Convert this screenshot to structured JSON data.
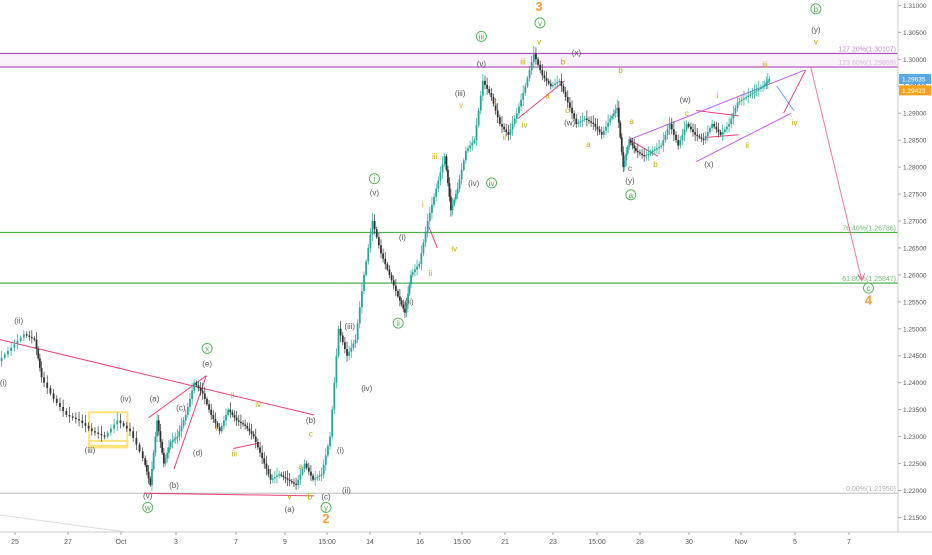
{
  "chart_data": {
    "type": "candlestick",
    "x_ticks": [
      "25",
      "27",
      "Oct",
      "3",
      "7",
      "9",
      "15:00",
      "14",
      "16",
      "15:00",
      "21",
      "23",
      "15:00",
      "28",
      "30",
      "Nov",
      "5",
      "7"
    ],
    "y_ticks": [
      "1.31000",
      "1.30500",
      "1.30000",
      "1.29500",
      "1.29000",
      "1.28500",
      "1.28000",
      "1.27500",
      "1.27000",
      "1.26500",
      "1.26000",
      "1.25500",
      "1.25000",
      "1.24500",
      "1.24000",
      "1.23500",
      "1.23000",
      "1.22500",
      "1.22000",
      "1.21500"
    ],
    "ylim": [
      1.2123,
      1.311
    ],
    "xlim": [
      0,
      100
    ],
    "current_price": {
      "value": 1.29635,
      "label": "1.29635",
      "color": "#58a8e8"
    },
    "secondary_price": {
      "value": 1.29423,
      "label": "1.29423",
      "color": "#f7a21b"
    },
    "levels": [
      {
        "label": "127.20%(1.30107)",
        "value": 1.30107,
        "color": "#9c27b0",
        "text_color": "#c78bd2"
      },
      {
        "label": "123.60%(1.29859)",
        "value": 1.29859,
        "color": "#9c27b0",
        "text_color": "#c78bd2"
      },
      {
        "label": "76.40%(1.26786)",
        "value": 1.26786,
        "color": "#4caf50",
        "text_color": "#6fbf73"
      },
      {
        "label": "61.80%(1.25847)",
        "value": 1.25847,
        "color": "#4caf50",
        "text_color": "#6fbf73"
      },
      {
        "label": "0.00%(1.21950)",
        "value": 1.2195,
        "color": "#b0b0b0",
        "text_color": "#b0b0b0"
      }
    ],
    "price_path": [
      [
        0,
        1.244
      ],
      [
        1.5,
        1.2465
      ],
      [
        3,
        1.249
      ],
      [
        4.2,
        1.248
      ],
      [
        5,
        1.241
      ],
      [
        6.5,
        1.237
      ],
      [
        8,
        1.234
      ],
      [
        9.5,
        1.233
      ],
      [
        11,
        1.231
      ],
      [
        12.5,
        1.23
      ],
      [
        14,
        1.233
      ],
      [
        15.5,
        1.231
      ],
      [
        17,
        1.226
      ],
      [
        17.8,
        1.221
      ],
      [
        18.6,
        1.233
      ],
      [
        19.4,
        1.225
      ],
      [
        20.2,
        1.229
      ],
      [
        21,
        1.23
      ],
      [
        22,
        1.234
      ],
      [
        23,
        1.24
      ],
      [
        24,
        1.238
      ],
      [
        25,
        1.234
      ],
      [
        26,
        1.231
      ],
      [
        27,
        1.235
      ],
      [
        28,
        1.233
      ],
      [
        29,
        1.232
      ],
      [
        30,
        1.23
      ],
      [
        31,
        1.226
      ],
      [
        32,
        1.222
      ],
      [
        33,
        1.223
      ],
      [
        34,
        1.222
      ],
      [
        35,
        1.221
      ],
      [
        36,
        1.225
      ],
      [
        37,
        1.222
      ],
      [
        38,
        1.223
      ],
      [
        39,
        1.23
      ],
      [
        40,
        1.25
      ],
      [
        41,
        1.245
      ],
      [
        42,
        1.248
      ],
      [
        43,
        1.26
      ],
      [
        44,
        1.27
      ],
      [
        45,
        1.264
      ],
      [
        46,
        1.26
      ],
      [
        47,
        1.256
      ],
      [
        47.8,
        1.253
      ],
      [
        48.5,
        1.26
      ],
      [
        49.5,
        1.262
      ],
      [
        50.5,
        1.27
      ],
      [
        51.5,
        1.276
      ],
      [
        52.5,
        1.282
      ],
      [
        53.2,
        1.272
      ],
      [
        54,
        1.276
      ],
      [
        55,
        1.283
      ],
      [
        56,
        1.285
      ],
      [
        57,
        1.296
      ],
      [
        58,
        1.293
      ],
      [
        59,
        1.288
      ],
      [
        60,
        1.286
      ],
      [
        61,
        1.29
      ],
      [
        62,
        1.295
      ],
      [
        63,
        1.301
      ],
      [
        64,
        1.297
      ],
      [
        65,
        1.295
      ],
      [
        66,
        1.296
      ],
      [
        67,
        1.292
      ],
      [
        68,
        1.288
      ],
      [
        69,
        1.289
      ],
      [
        70,
        1.288
      ],
      [
        71,
        1.286
      ],
      [
        72,
        1.289
      ],
      [
        72.8,
        1.291
      ],
      [
        73.5,
        1.28
      ],
      [
        74.2,
        1.285
      ],
      [
        75,
        1.283
      ],
      [
        76,
        1.282
      ],
      [
        77,
        1.283
      ],
      [
        78,
        1.284
      ],
      [
        79,
        1.288
      ],
      [
        80,
        1.284
      ],
      [
        81,
        1.288
      ],
      [
        82,
        1.286
      ],
      [
        83,
        1.285
      ],
      [
        84,
        1.288
      ],
      [
        85,
        1.286
      ],
      [
        86,
        1.288
      ],
      [
        87,
        1.292
      ],
      [
        88,
        1.293
      ],
      [
        89,
        1.294
      ],
      [
        90,
        1.295
      ],
      [
        90.7,
        1.2963
      ]
    ],
    "channel_lines": [
      {
        "color": "#e91e63",
        "points": [
          [
            0,
            1.248
          ],
          [
            37,
            1.234
          ]
        ]
      },
      {
        "color": "#e91e63",
        "points": [
          [
            17,
            1.2195
          ],
          [
            37,
            1.219
          ]
        ]
      },
      {
        "color": "#e91e63",
        "points": [
          [
            17.5,
            1.2335
          ],
          [
            24.3,
            1.2413
          ]
        ]
      },
      {
        "color": "#e91e63",
        "points": [
          [
            20.5,
            1.224
          ],
          [
            24.3,
            1.2413
          ]
        ]
      },
      {
        "color": "#e91e63",
        "points": [
          [
            27.5,
            1.2278
          ],
          [
            30.5,
            1.2288
          ]
        ]
      },
      {
        "color": "#e91e63",
        "points": [
          [
            50.5,
            1.269
          ],
          [
            51.5,
            1.265
          ]
        ]
      },
      {
        "color": "#e91e63",
        "points": [
          [
            66.5,
            1.296
          ],
          [
            61,
            1.289
          ]
        ]
      },
      {
        "color": "#e91e63",
        "points": [
          [
            74.2,
            1.285
          ],
          [
            77.5,
            1.282
          ]
        ]
      },
      {
        "color": "#e91e63",
        "points": [
          [
            82,
            1.2905
          ],
          [
            87,
            1.2895
          ]
        ]
      },
      {
        "color": "#e91e63",
        "points": [
          [
            83,
            1.2855
          ],
          [
            87,
            1.286
          ]
        ]
      },
      {
        "color": "#b844e8",
        "points": [
          [
            74,
            1.285
          ],
          [
            94.8,
            1.298
          ]
        ]
      },
      {
        "color": "#b844e8",
        "points": [
          [
            82,
            1.281
          ],
          [
            93.2,
            1.29
          ]
        ]
      },
      {
        "color": "#4a8fe8",
        "points": [
          [
            91.5,
            1.295
          ],
          [
            93.5,
            1.2905
          ]
        ]
      },
      {
        "color": "#e91e63",
        "points": [
          [
            92.3,
            1.29
          ],
          [
            94.9,
            1.298
          ]
        ]
      },
      {
        "color": "#f06292",
        "points": [
          [
            95.5,
            1.2985
          ],
          [
            101.5,
            1.259
          ]
        ]
      }
    ],
    "yellow_boxes": [
      {
        "x": [
          10.5,
          15
        ],
        "y": [
          1.228,
          1.2345
        ]
      },
      {
        "x": [
          10.5,
          15
        ],
        "y": [
          1.2283,
          1.2292
        ]
      }
    ],
    "annotations": [
      {
        "text": "(ii)",
        "x": 2.2,
        "y": 1.251,
        "color": "#555555"
      },
      {
        "text": "(i)",
        "x": 0.4,
        "y": 1.2395,
        "color": "#555555"
      },
      {
        "text": "(iii)",
        "x": 10.6,
        "y": 1.227,
        "color": "#555555"
      },
      {
        "text": "(iv)",
        "x": 14.8,
        "y": 1.2365,
        "color": "#555555"
      },
      {
        "text": "(v)",
        "x": 17.4,
        "y": 1.2185,
        "color": "#555555"
      },
      {
        "text": "w",
        "x": 17.4,
        "y": 1.2163,
        "color": "#4caf50",
        "circle": true
      },
      {
        "text": "(a)",
        "x": 18.2,
        "y": 1.2365,
        "color": "#555555"
      },
      {
        "text": "(b)",
        "x": 20.5,
        "y": 1.2205,
        "color": "#555555"
      },
      {
        "text": "(c)",
        "x": 21.3,
        "y": 1.2348,
        "color": "#555555"
      },
      {
        "text": "(d)",
        "x": 23.3,
        "y": 1.2265,
        "color": "#555555"
      },
      {
        "text": "(e)",
        "x": 24.4,
        "y": 1.243,
        "color": "#555555"
      },
      {
        "text": "x",
        "x": 24.4,
        "y": 1.2458,
        "color": "#4caf50",
        "circle": true
      },
      {
        "text": "i",
        "x": 25.5,
        "y": 1.231,
        "color": "#f9a825"
      },
      {
        "text": "ii",
        "x": 27.4,
        "y": 1.2372,
        "color": "#c8a900"
      },
      {
        "text": "iii",
        "x": 27.6,
        "y": 1.2263,
        "color": "#c8a900"
      },
      {
        "text": "iv",
        "x": 30.4,
        "y": 1.2355,
        "color": "#c8a900"
      },
      {
        "text": "v",
        "x": 34.1,
        "y": 1.2183,
        "color": "#c8a900"
      },
      {
        "text": "(a)",
        "x": 34.1,
        "y": 1.216,
        "color": "#555555"
      },
      {
        "text": "a",
        "x": 35.4,
        "y": 1.224,
        "color": "#c8a900"
      },
      {
        "text": "b",
        "x": 36.5,
        "y": 1.2183,
        "color": "#c8a900"
      },
      {
        "text": "c",
        "x": 36.6,
        "y": 1.23,
        "color": "#c8a900"
      },
      {
        "text": "(b)",
        "x": 36.6,
        "y": 1.2325,
        "color": "#555555"
      },
      {
        "text": "(c)",
        "x": 38.4,
        "y": 1.2183,
        "color": "#555555"
      },
      {
        "text": "y",
        "x": 38.4,
        "y": 1.2163,
        "color": "#4caf50",
        "circle": true
      },
      {
        "text": "2",
        "x": 38.4,
        "y": 1.214,
        "color": "#f7a040",
        "size": 13
      },
      {
        "text": "(i)",
        "x": 40.1,
        "y": 1.227,
        "color": "#555555"
      },
      {
        "text": "(ii)",
        "x": 40.8,
        "y": 1.2195,
        "color": "#555555"
      },
      {
        "text": "(iii)",
        "x": 41.2,
        "y": 1.25,
        "color": "#555555"
      },
      {
        "text": "(iv)",
        "x": 43.2,
        "y": 1.2385,
        "color": "#555555"
      },
      {
        "text": "i",
        "x": 44.1,
        "y": 1.2773,
        "color": "#4caf50",
        "circle": true
      },
      {
        "text": "(v)",
        "x": 44.1,
        "y": 1.2747,
        "color": "#555555"
      },
      {
        "text": "(i)",
        "x": 47.4,
        "y": 1.2665,
        "color": "#555555"
      },
      {
        "text": "(ii)",
        "x": 48.2,
        "y": 1.2545,
        "color": "#555555"
      },
      {
        "text": "ii",
        "x": 46.9,
        "y": 1.2505,
        "color": "#4caf50",
        "circle": true
      },
      {
        "text": "i",
        "x": 49.8,
        "y": 1.2725,
        "color": "#f9a825"
      },
      {
        "text": "ii",
        "x": 50.7,
        "y": 1.2598,
        "color": "#c8a900"
      },
      {
        "text": "iv",
        "x": 53.5,
        "y": 1.2643,
        "color": "#c8a900"
      },
      {
        "text": "iii",
        "x": 51.2,
        "y": 1.2815,
        "color": "#c8a900"
      },
      {
        "text": "v",
        "x": 54.3,
        "y": 1.291,
        "color": "#f9a825"
      },
      {
        "text": "(iii)",
        "x": 54.2,
        "y": 1.2932,
        "color": "#555555"
      },
      {
        "text": "(iv)",
        "x": 55.8,
        "y": 1.2765,
        "color": "#555555"
      },
      {
        "text": "iv",
        "x": 57.9,
        "y": 1.2765,
        "color": "#4caf50",
        "circle": true
      },
      {
        "text": "iii",
        "x": 56.7,
        "y": 1.3037,
        "color": "#4caf50",
        "circle": true
      },
      {
        "text": "(v)",
        "x": 56.7,
        "y": 1.2987,
        "color": "#555555"
      },
      {
        "text": "i",
        "x": 58.4,
        "y": 1.2913,
        "color": "#f9a825"
      },
      {
        "text": "ii",
        "x": 59.4,
        "y": 1.285,
        "color": "#c8a900"
      },
      {
        "text": "iii",
        "x": 61.6,
        "y": 1.299,
        "color": "#c8a900"
      },
      {
        "text": "iv",
        "x": 61.8,
        "y": 1.2873,
        "color": "#c8a900"
      },
      {
        "text": "3",
        "x": 63.5,
        "y": 1.309,
        "color": "#f7a040",
        "size": 13
      },
      {
        "text": "v",
        "x": 63.6,
        "y": 1.3062,
        "color": "#4caf50",
        "circle": true
      },
      {
        "text": "v",
        "x": 63.5,
        "y": 1.3027,
        "color": "#c8a900"
      },
      {
        "text": "a",
        "x": 64.5,
        "y": 1.2927,
        "color": "#c8a900"
      },
      {
        "text": "b",
        "x": 66.3,
        "y": 1.299,
        "color": "#c8a900"
      },
      {
        "text": "(x)",
        "x": 67.9,
        "y": 1.3007,
        "color": "#555555"
      },
      {
        "text": "c",
        "x": 66.8,
        "y": 1.29,
        "color": "#c8a900"
      },
      {
        "text": "(w)",
        "x": 67.1,
        "y": 1.2877,
        "color": "#555555"
      },
      {
        "text": "a",
        "x": 69.3,
        "y": 1.2837,
        "color": "#c8a900"
      },
      {
        "text": "b",
        "x": 73.1,
        "y": 1.2975,
        "color": "#c8a900"
      },
      {
        "text": "a",
        "x": 74.4,
        "y": 1.288,
        "color": "#c8a900"
      },
      {
        "text": "b",
        "x": 77.2,
        "y": 1.28,
        "color": "#c8a900"
      },
      {
        "text": "c",
        "x": 74.2,
        "y": 1.2793,
        "color": "#555555"
      },
      {
        "text": "(y)",
        "x": 74.2,
        "y": 1.277,
        "color": "#555555"
      },
      {
        "text": "a",
        "x": 74.3,
        "y": 1.2743,
        "color": "#4caf50",
        "circle": true
      },
      {
        "text": "(w)",
        "x": 80.7,
        "y": 1.292,
        "color": "#555555"
      },
      {
        "text": "c",
        "x": 80.9,
        "y": 1.2895,
        "color": "#c8a900"
      },
      {
        "text": "i",
        "x": 84.5,
        "y": 1.2928,
        "color": "#f9a825"
      },
      {
        "text": "(x)",
        "x": 83.5,
        "y": 1.28,
        "color": "#555555"
      },
      {
        "text": "ii",
        "x": 88.0,
        "y": 1.2835,
        "color": "#c8a900"
      },
      {
        "text": "iii",
        "x": 90.1,
        "y": 1.2985,
        "color": "#c8a900"
      },
      {
        "text": "iv",
        "x": 93.6,
        "y": 1.2877,
        "color": "#c8a900"
      },
      {
        "text": "b",
        "x": 96.1,
        "y": 1.3088,
        "color": "#4caf50",
        "circle": true
      },
      {
        "text": "(y)",
        "x": 96.1,
        "y": 1.305,
        "color": "#555555"
      },
      {
        "text": "v",
        "x": 96.1,
        "y": 1.3027,
        "color": "#c8a900"
      },
      {
        "text": "c",
        "x": 102.3,
        "y": 1.257,
        "color": "#4caf50",
        "circle": true
      },
      {
        "text": "4",
        "x": 102.3,
        "y": 1.2545,
        "color": "#f7a040",
        "size": 13
      }
    ]
  },
  "colors": {
    "up": "#26a69a",
    "down": "#333333",
    "axis_text": "#555555",
    "grid": "#eeeeee"
  }
}
